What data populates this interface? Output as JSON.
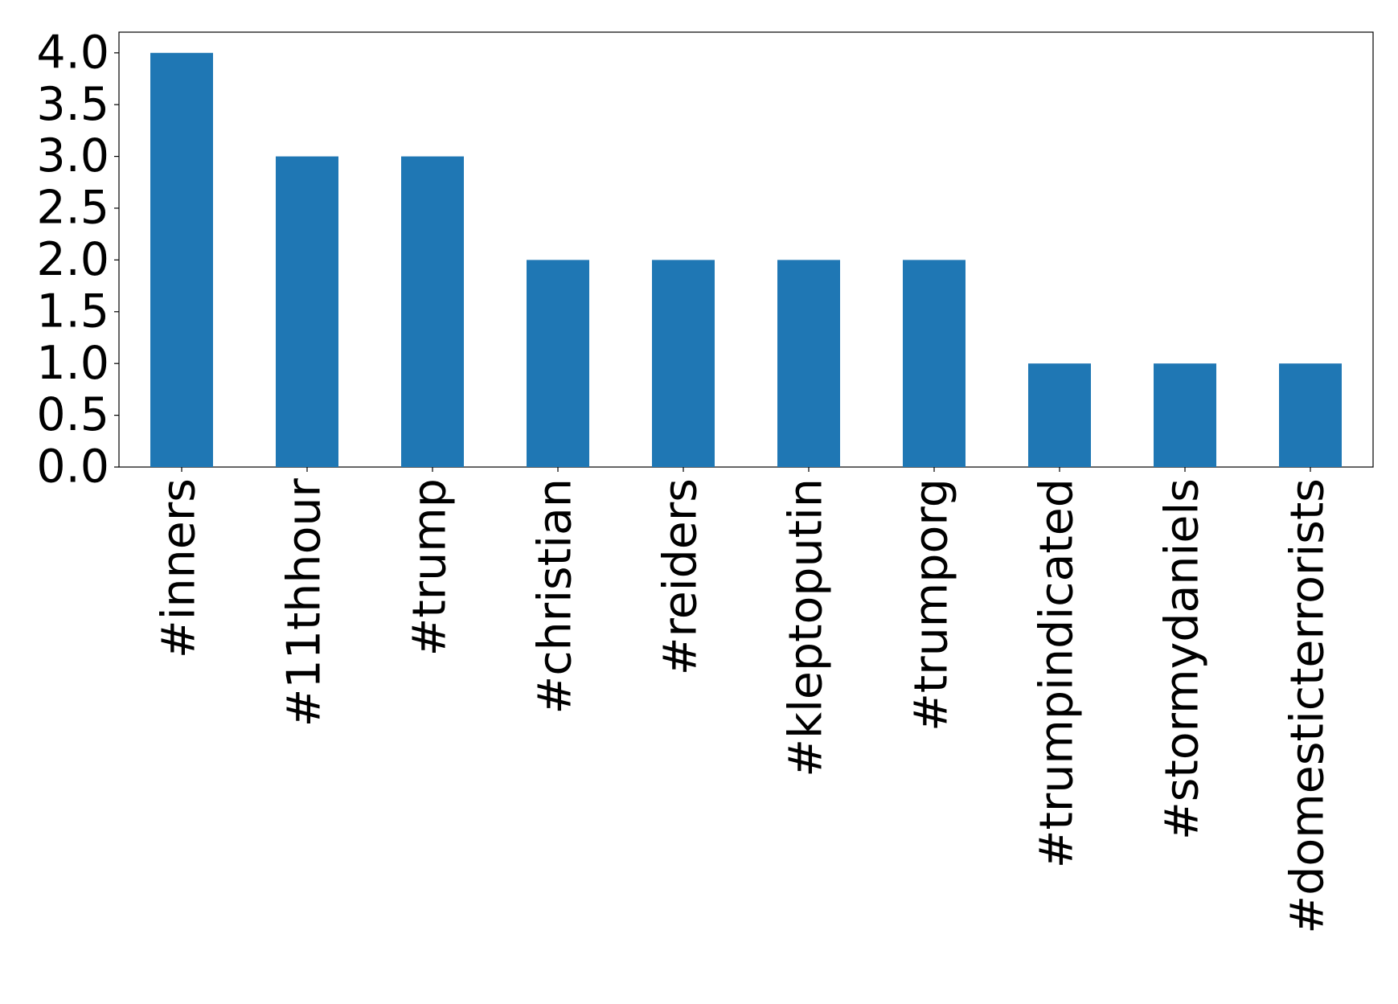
{
  "chart_data": {
    "type": "bar",
    "categories": [
      "#inners",
      "#11thhour",
      "#trump",
      "#christian",
      "#reiders",
      "#kleptoputin",
      "#trumporg",
      "#trumpindicated",
      "#stormydaniels",
      "#domesticterrorists"
    ],
    "values": [
      4,
      3,
      3,
      2,
      2,
      2,
      2,
      1,
      1,
      1
    ],
    "color": "#1f77b4",
    "ylim": [
      0,
      4.2
    ],
    "yticks": [
      {
        "value": 0,
        "label": "0.0"
      },
      0.5,
      {
        "value": 1,
        "label": "1.0"
      },
      1.5,
      {
        "value": 2,
        "label": "2.0"
      },
      2.5,
      {
        "value": 3,
        "label": "3.0"
      },
      3.5,
      {
        "value": 4,
        "label": "4.0"
      }
    ],
    "grid": false
  }
}
